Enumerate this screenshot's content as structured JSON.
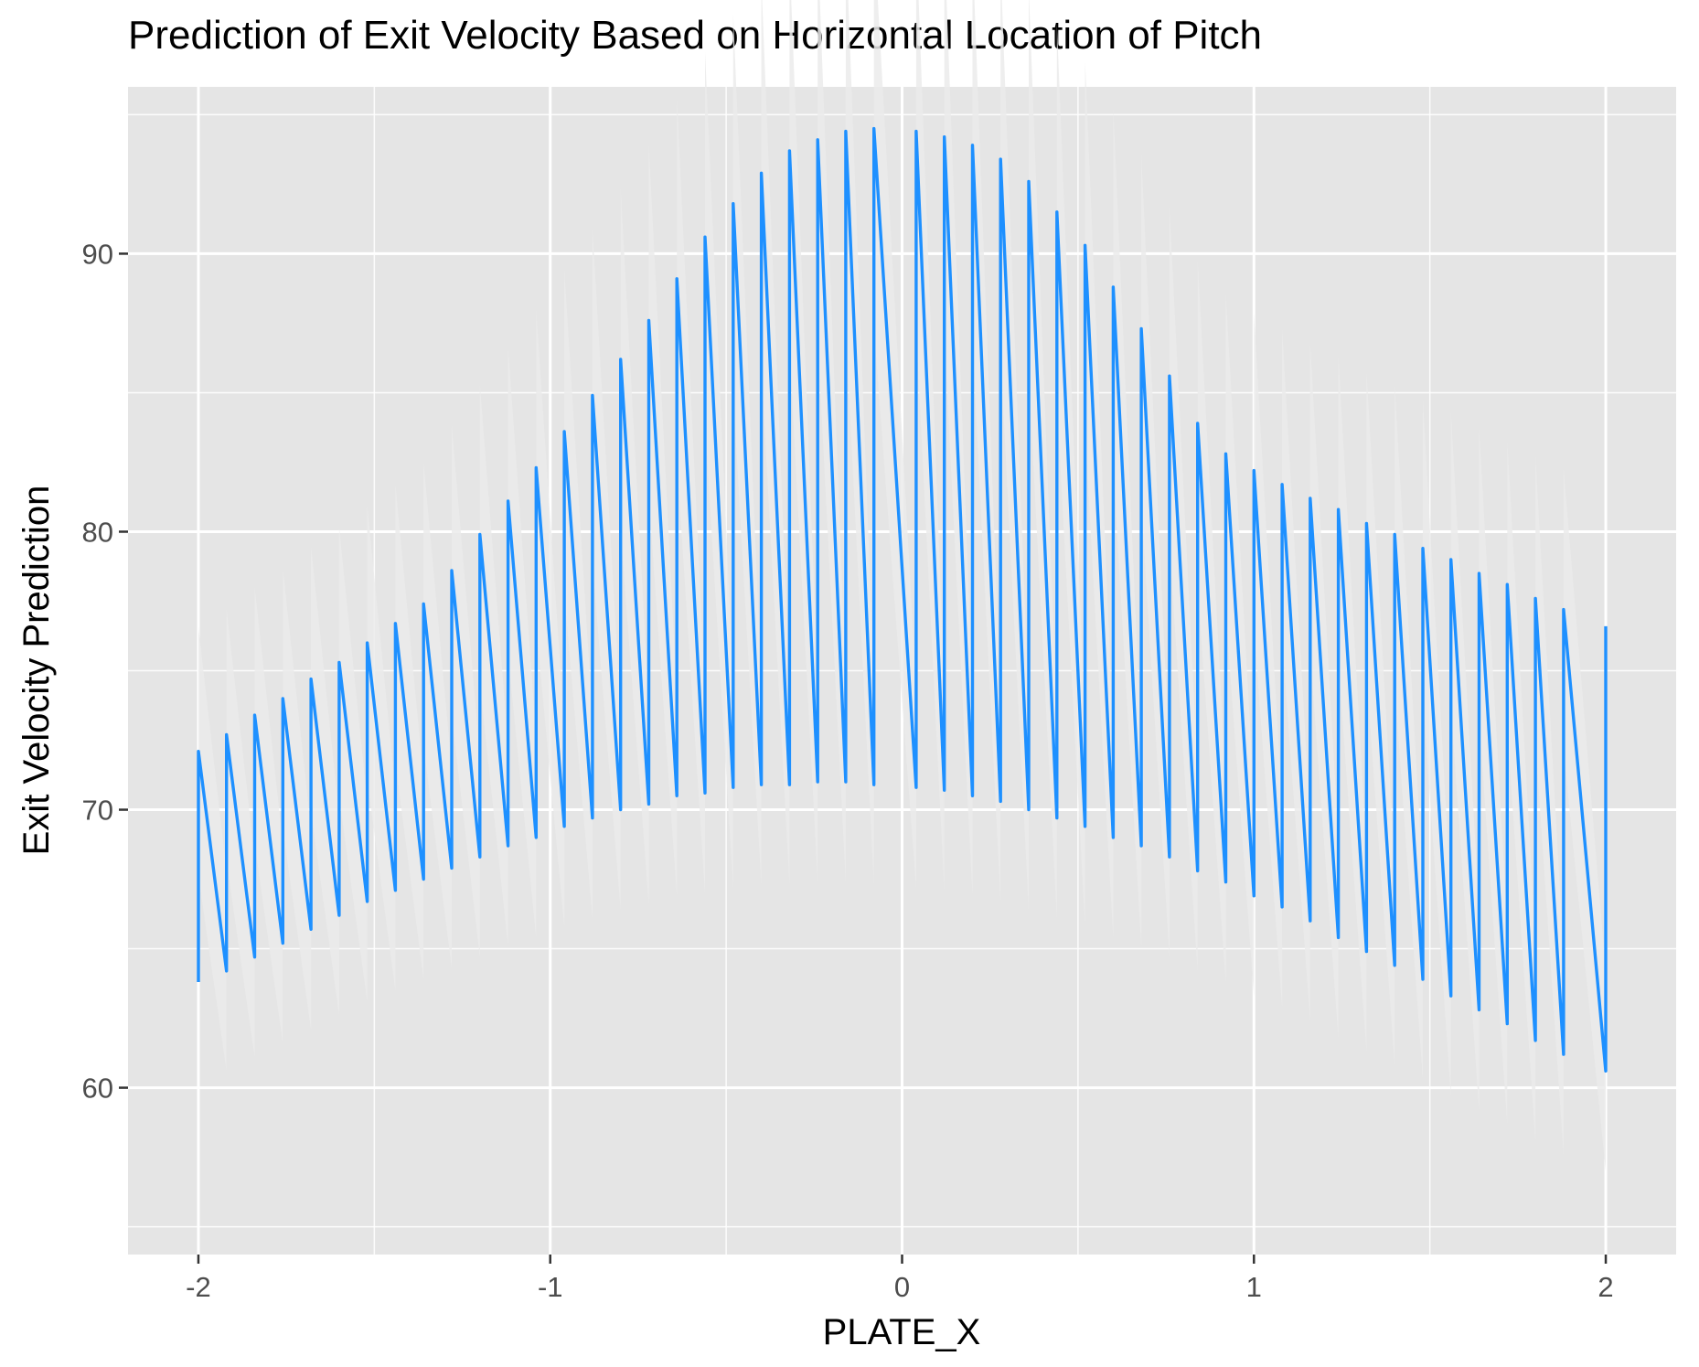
{
  "colors": {
    "panel_background": "#E5E5E5",
    "grid_major": "#FFFFFF",
    "grid_minor": "#F2F2F2",
    "line": "#1E90FF",
    "ribbon": "#EBEBEB",
    "tick_text": "#4D4D4D",
    "tick_mark": "#333333"
  },
  "chart_data": {
    "type": "line",
    "title": "Prediction of Exit Velocity Based on Horizontal Location of Pitch",
    "xlabel": "PLATE_X",
    "ylabel": "Exit Velocity Prediction",
    "xlim": [
      -2.2,
      2.2
    ],
    "ylim": [
      54.0,
      96.0
    ],
    "x_ticks": [
      -2,
      -1,
      0,
      1,
      2
    ],
    "x_tick_labels": [
      "-2",
      "-1",
      "0",
      "1",
      "2"
    ],
    "y_ticks": [
      60,
      70,
      80,
      90
    ],
    "y_tick_labels": [
      "60",
      "70",
      "80",
      "90"
    ],
    "grid": true,
    "legend": "none",
    "series": [
      {
        "description": "Sawtooth prediction line: each segment starts at the low value and jumps to the high value at the same x, then declines to the next low value",
        "points": [
          [
            -2.0,
            63.8
          ],
          [
            -2.0,
            72.1
          ],
          [
            -1.92,
            64.2
          ],
          [
            -1.92,
            72.7
          ],
          [
            -1.84,
            64.7
          ],
          [
            -1.84,
            73.4
          ],
          [
            -1.76,
            65.2
          ],
          [
            -1.76,
            74.0
          ],
          [
            -1.68,
            65.7
          ],
          [
            -1.68,
            74.7
          ],
          [
            -1.6,
            66.2
          ],
          [
            -1.6,
            75.3
          ],
          [
            -1.52,
            66.7
          ],
          [
            -1.52,
            76.0
          ],
          [
            -1.44,
            67.1
          ],
          [
            -1.44,
            76.7
          ],
          [
            -1.36,
            67.5
          ],
          [
            -1.36,
            77.4
          ],
          [
            -1.28,
            67.9
          ],
          [
            -1.28,
            78.6
          ],
          [
            -1.2,
            68.3
          ],
          [
            -1.2,
            79.9
          ],
          [
            -1.12,
            68.7
          ],
          [
            -1.12,
            81.1
          ],
          [
            -1.04,
            69.0
          ],
          [
            -1.04,
            82.3
          ],
          [
            -0.96,
            69.4
          ],
          [
            -0.96,
            83.6
          ],
          [
            -0.88,
            69.7
          ],
          [
            -0.88,
            84.9
          ],
          [
            -0.8,
            70.0
          ],
          [
            -0.8,
            86.2
          ],
          [
            -0.72,
            70.2
          ],
          [
            -0.72,
            87.6
          ],
          [
            -0.64,
            70.5
          ],
          [
            -0.64,
            89.1
          ],
          [
            -0.56,
            70.6
          ],
          [
            -0.56,
            90.6
          ],
          [
            -0.48,
            70.8
          ],
          [
            -0.48,
            91.8
          ],
          [
            -0.4,
            70.9
          ],
          [
            -0.4,
            92.9
          ],
          [
            -0.32,
            70.9
          ],
          [
            -0.32,
            93.7
          ],
          [
            -0.24,
            71.0
          ],
          [
            -0.24,
            94.1
          ],
          [
            -0.16,
            71.0
          ],
          [
            -0.16,
            94.4
          ],
          [
            -0.08,
            70.9
          ],
          [
            -0.08,
            94.5
          ],
          [
            0.04,
            70.8
          ],
          [
            0.04,
            94.4
          ],
          [
            0.12,
            70.7
          ],
          [
            0.12,
            94.2
          ],
          [
            0.2,
            70.5
          ],
          [
            0.2,
            93.9
          ],
          [
            0.28,
            70.3
          ],
          [
            0.28,
            93.4
          ],
          [
            0.36,
            70.0
          ],
          [
            0.36,
            92.6
          ],
          [
            0.44,
            69.7
          ],
          [
            0.44,
            91.5
          ],
          [
            0.52,
            69.4
          ],
          [
            0.52,
            90.3
          ],
          [
            0.6,
            69.0
          ],
          [
            0.6,
            88.8
          ],
          [
            0.68,
            68.7
          ],
          [
            0.68,
            87.3
          ],
          [
            0.76,
            68.3
          ],
          [
            0.76,
            85.6
          ],
          [
            0.84,
            67.8
          ],
          [
            0.84,
            83.9
          ],
          [
            0.92,
            67.4
          ],
          [
            0.92,
            82.8
          ],
          [
            1.0,
            66.9
          ],
          [
            1.0,
            82.2
          ],
          [
            1.08,
            66.5
          ],
          [
            1.08,
            81.7
          ],
          [
            1.16,
            66.0
          ],
          [
            1.16,
            81.2
          ],
          [
            1.24,
            65.4
          ],
          [
            1.24,
            80.8
          ],
          [
            1.32,
            64.9
          ],
          [
            1.32,
            80.3
          ],
          [
            1.4,
            64.4
          ],
          [
            1.4,
            79.9
          ],
          [
            1.48,
            63.9
          ],
          [
            1.48,
            79.4
          ],
          [
            1.56,
            63.3
          ],
          [
            1.56,
            79.0
          ],
          [
            1.64,
            62.8
          ],
          [
            1.64,
            78.5
          ],
          [
            1.72,
            62.3
          ],
          [
            1.72,
            78.1
          ],
          [
            1.8,
            61.7
          ],
          [
            1.8,
            77.6
          ],
          [
            1.88,
            61.2
          ],
          [
            1.88,
            77.2
          ],
          [
            2.0,
            60.6
          ],
          [
            2.0,
            76.6
          ]
        ]
      }
    ]
  }
}
